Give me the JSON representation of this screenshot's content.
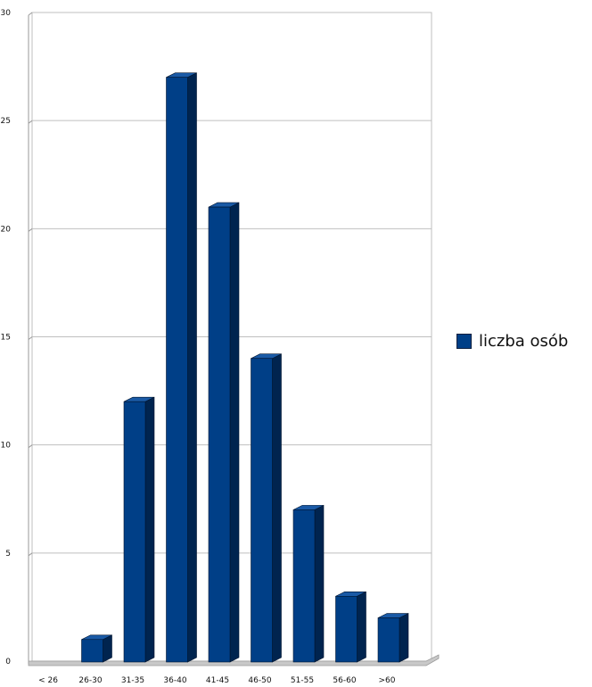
{
  "chart_data": {
    "type": "bar",
    "categories": [
      "< 26",
      "26-30",
      "31-35",
      "36-40",
      "41-45",
      "46-50",
      "51-55",
      "56-60",
      ">60"
    ],
    "series": [
      {
        "name": "liczba osób",
        "values": [
          0,
          1,
          12,
          27,
          21,
          14,
          7,
          3,
          2
        ]
      }
    ],
    "ylim": [
      0,
      30
    ],
    "yticks": [
      "0",
      "5",
      "10",
      "15",
      "20",
      "25",
      "30"
    ],
    "grid": true,
    "legend_position": "right",
    "colors": {
      "bar_front": "#003f87",
      "bar_side": "#00244f",
      "bar_top": "#1a5aa6",
      "floor": "#c8c8c8"
    }
  }
}
